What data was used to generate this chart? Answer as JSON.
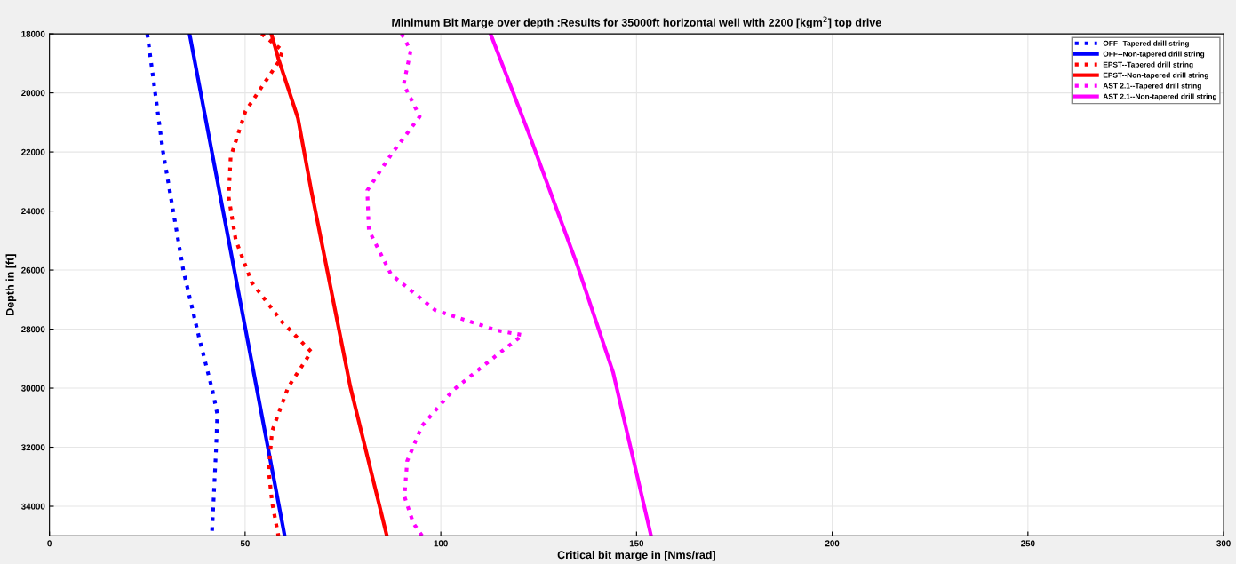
{
  "chart_data": {
    "type": "line",
    "title": "Minimum Bit Marge over depth :Results for 35000ft horizontal well with 2200 [kgm$^{2}$] top drive",
    "xlabel": "Critical bit marge in [Nms/rad]",
    "ylabel": "Depth in [ft]",
    "xlim": [
      0,
      300
    ],
    "xticks": [
      0,
      50,
      100,
      150,
      200,
      250,
      300
    ],
    "ylim": [
      35000,
      18000
    ],
    "yticks": [
      18000,
      20000,
      22000,
      24000,
      26000,
      28000,
      30000,
      32000,
      34000
    ],
    "grid": true,
    "legend": "top right",
    "marker": "none",
    "series": [
      {
        "name": "OFF--Tapered drill string",
        "color": "#0000ff",
        "line_style": "dotted",
        "x": [
          25.0,
          29.0,
          34.2,
          38.3,
          41.7,
          42.9,
          42.6,
          41.5
        ],
        "values": [
          18000,
          21970,
          26000,
          28320,
          30100,
          30880,
          32000,
          35000
        ]
      },
      {
        "name": "OFF--Non-tapered drill string",
        "color": "#0000ff",
        "line_style": "solid",
        "x": [
          35.8,
          60.1
        ],
        "values": [
          18000,
          35000
        ]
      },
      {
        "name": "EPST--Tapered drill string",
        "color": "#ff0000",
        "line_style": "dotted",
        "x": [
          54.2,
          59.6,
          58.5,
          50.1,
          46.3,
          45.8,
          47.6,
          51.7,
          59.4,
          66.9,
          61.0,
          56.9,
          56.0,
          56.9,
          58.5
        ],
        "values": [
          18000,
          18570,
          18960,
          20620,
          22180,
          23530,
          24980,
          26420,
          27750,
          28770,
          29970,
          31450,
          32770,
          33880,
          35000
        ]
      },
      {
        "name": "EPST--Non-tapered drill string",
        "color": "#ff0000",
        "line_style": "solid",
        "x": [
          56.7,
          58.5,
          63.5,
          66.9,
          71.9,
          76.9,
          86.2
        ],
        "values": [
          18000,
          18840,
          20860,
          23300,
          26630,
          29970,
          35000
        ]
      },
      {
        "name": "AST 2.1--Tapered drill string",
        "color": "#ff00ff",
        "line_style": "dotted",
        "x": [
          90.0,
          92.3,
          90.5,
          94.6,
          87.3,
          81.2,
          81.6,
          87.3,
          98.6,
          114.5,
          120.9,
          114.5,
          103.2,
          95.2,
          91.4,
          90.7,
          93.0,
          95.2
        ],
        "values": [
          18000,
          18570,
          19710,
          20800,
          22090,
          23300,
          24650,
          26150,
          27360,
          28050,
          28200,
          28860,
          30060,
          31270,
          32470,
          33670,
          34580,
          35000
        ]
      },
      {
        "name": "AST 2.1--Non-tapered drill string",
        "color": "#ff00ff",
        "line_style": "solid",
        "x": [
          112.7,
          122.4,
          134.9,
          144.0,
          148.5,
          153.7
        ],
        "values": [
          18000,
          21340,
          25850,
          29460,
          32020,
          35000
        ]
      }
    ]
  }
}
